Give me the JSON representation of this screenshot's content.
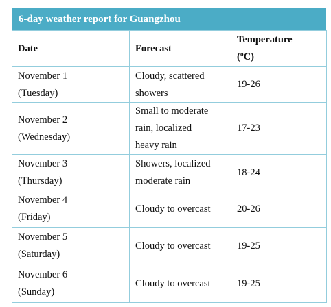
{
  "title": "6-day weather report for Guangzhou",
  "table": {
    "header": [
      "Date",
      "Forecast",
      [
        "Temperature",
        "(ºC)"
      ]
    ],
    "rows": [
      [
        [
          "November 1",
          "(Tuesday)"
        ],
        [
          "Cloudy, scattered",
          "showers"
        ],
        "19-26"
      ],
      [
        [
          "November 2",
          "(Wednesday)"
        ],
        [
          "Small to moderate",
          "rain, localized",
          "heavy rain"
        ],
        "17-23"
      ],
      [
        [
          "November 3",
          "(Thursday)"
        ],
        [
          "Showers, localized",
          "moderate rain"
        ],
        "18-24"
      ],
      [
        [
          "November 4",
          "(Friday)"
        ],
        [
          "Cloudy to overcast"
        ],
        "20-26"
      ],
      [
        [
          "November 5",
          "(Saturday)"
        ],
        [
          "Cloudy to overcast"
        ],
        "19-25"
      ],
      [
        [
          "November 6",
          "(Sunday)"
        ],
        [
          "Cloudy to overcast"
        ],
        "19-25"
      ]
    ]
  }
}
